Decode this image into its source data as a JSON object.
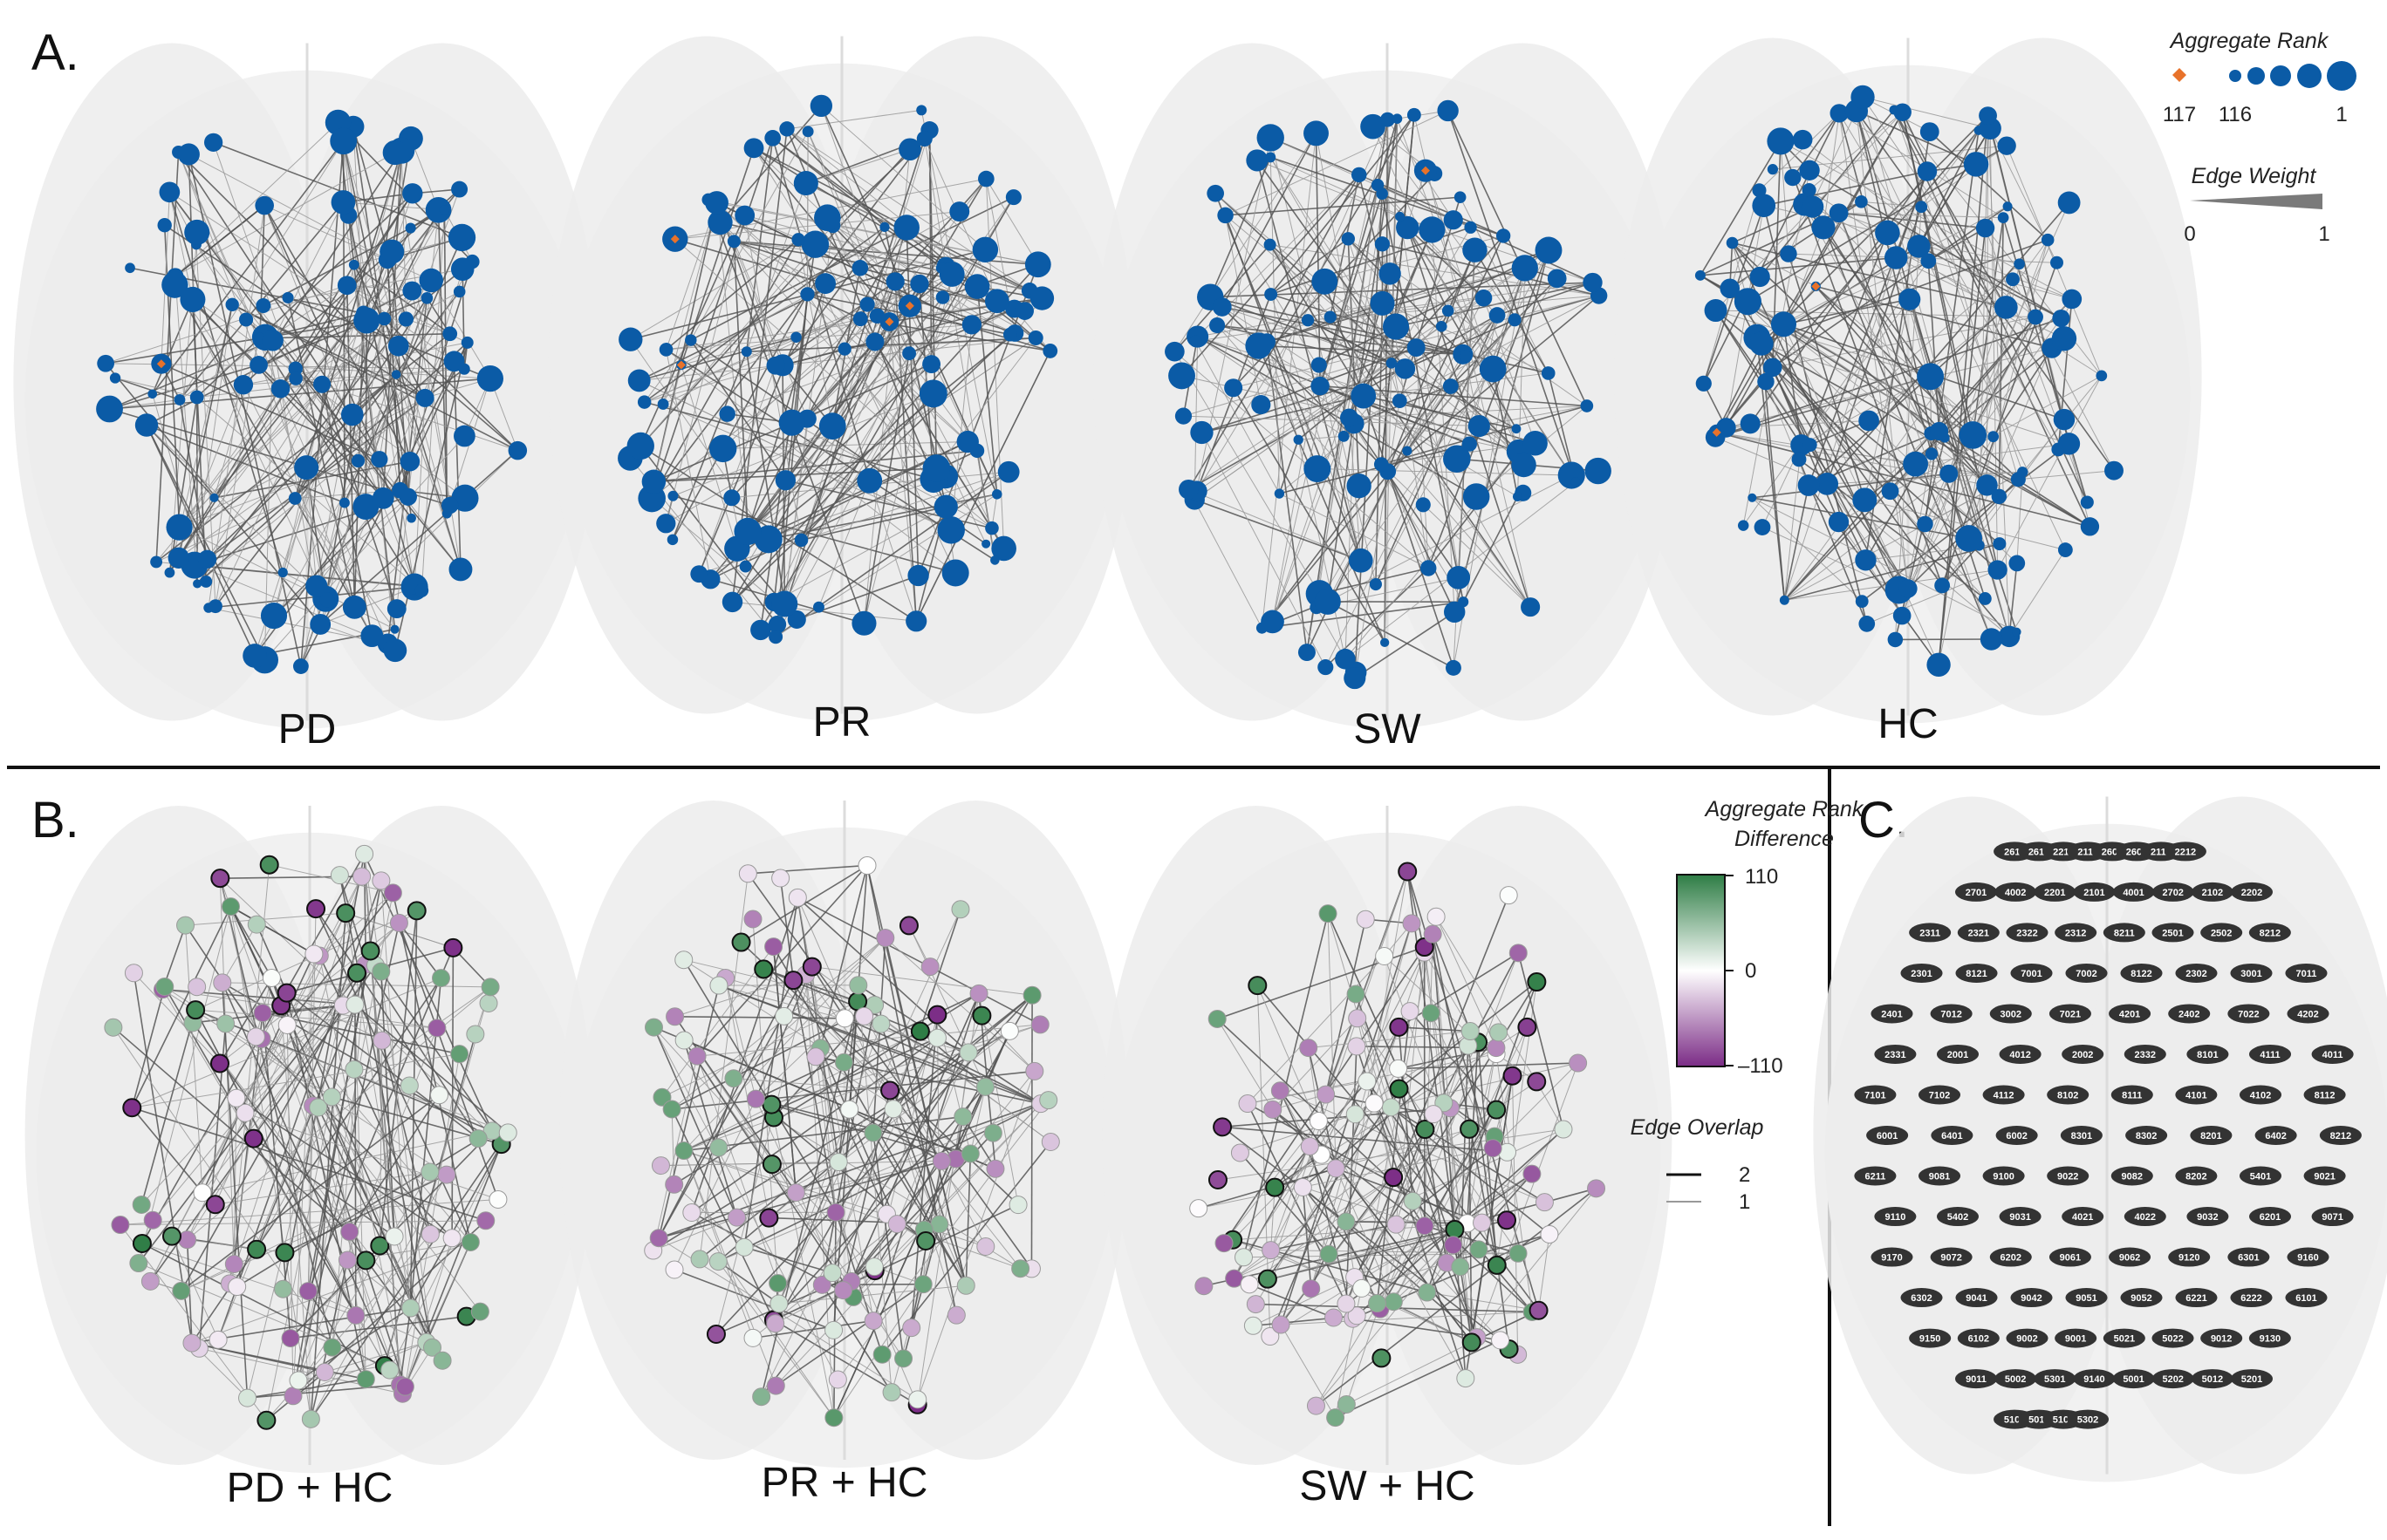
{
  "panels": {
    "a": {
      "letter": "A.",
      "networks": [
        "PD",
        "PR",
        "SW",
        "HC"
      ]
    },
    "b": {
      "letter": "B.",
      "networks": [
        "PD + HC",
        "PR + HC",
        "SW + HC"
      ]
    },
    "c": {
      "letter": "C."
    }
  },
  "legend_rank": {
    "title": "Aggregate Rank",
    "ticks": [
      "117",
      "116",
      "1"
    ],
    "colors": {
      "rank_117": "#e8722a",
      "ranked": "#0b5ba6"
    }
  },
  "legend_weight": {
    "title": "Edge Weight",
    "ticks": [
      "0",
      "1"
    ]
  },
  "legend_diff": {
    "title_line1": "Aggregate Rank",
    "title_line2": "Difference",
    "ticks": [
      "110",
      "0",
      "–110"
    ],
    "colors": {
      "high": "#2e7d45",
      "mid": "#ffffff",
      "low": "#7b2c86"
    }
  },
  "legend_overlap": {
    "title": "Edge Overlap",
    "ticks": [
      "2",
      "1"
    ]
  },
  "electrodes": [
    "2611",
    "2612",
    "2211",
    "2111",
    "2601",
    "2602",
    "2112",
    "2212",
    "2701",
    "4002",
    "2201",
    "2101",
    "4001",
    "2702",
    "2102",
    "2202",
    "2311",
    "2321",
    "2322",
    "2312",
    "8211",
    "2501",
    "2502",
    "8212",
    "2301",
    "8121",
    "7001",
    "7002",
    "8122",
    "2302",
    "3001",
    "7011",
    "2401",
    "7012",
    "3002",
    "7021",
    "4201",
    "2402",
    "7022",
    "4202",
    "2331",
    "2001",
    "4012",
    "2002",
    "2332",
    "8101",
    "4111",
    "4011",
    "7101",
    "7102",
    "4112",
    "8102",
    "8111",
    "4101",
    "4102",
    "8112",
    "6001",
    "6401",
    "6002",
    "8301",
    "8302",
    "8201",
    "6402",
    "8212",
    "6211",
    "9081",
    "9100",
    "9022",
    "9082",
    "8202",
    "5401",
    "9021",
    "9110",
    "5402",
    "9031",
    "4021",
    "4022",
    "9032",
    "6201",
    "9071",
    "9170",
    "9072",
    "6202",
    "9061",
    "9062",
    "9120",
    "6301",
    "9160",
    "6302",
    "9041",
    "9042",
    "9051",
    "9052",
    "6221",
    "6222",
    "6101",
    "9150",
    "6102",
    "9002",
    "9001",
    "5021",
    "5022",
    "9012",
    "9130",
    "9011",
    "5002",
    "5301",
    "9140",
    "5001",
    "5202",
    "5012",
    "5201",
    "5101",
    "5011",
    "5102",
    "5302"
  ]
}
